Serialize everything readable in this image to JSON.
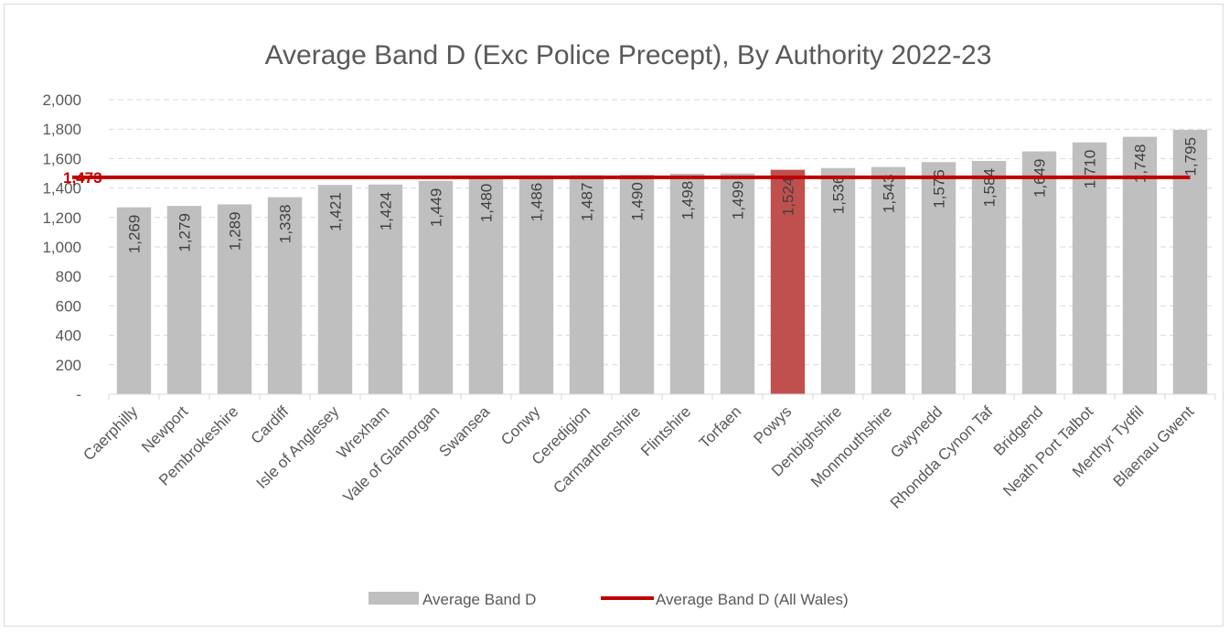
{
  "chart_data": {
    "type": "bar",
    "title": "Average Band D (Exc Police Precept), By Authority 2022-23",
    "xlabel": "",
    "ylabel": "",
    "ylim": [
      0,
      2000
    ],
    "y_ticks": [
      {
        "value": 0,
        "label": "-"
      },
      {
        "value": 200,
        "label": "200"
      },
      {
        "value": 400,
        "label": "400"
      },
      {
        "value": 600,
        "label": "600"
      },
      {
        "value": 800,
        "label": "800"
      },
      {
        "value": 1000,
        "label": "1,000"
      },
      {
        "value": 1200,
        "label": "1,200"
      },
      {
        "value": 1400,
        "label": "1,400"
      },
      {
        "value": 1600,
        "label": "1,600"
      },
      {
        "value": 1800,
        "label": "1,800"
      },
      {
        "value": 2000,
        "label": "2,000"
      }
    ],
    "grid": true,
    "categories": [
      "Caerphilly",
      "Newport",
      "Pembrokeshire",
      "Cardiff",
      "Isle of Anglesey",
      "Wrexham",
      "Vale of Glamorgan",
      "Swansea",
      "Conwy",
      "Ceredigion",
      "Carmarthenshire",
      "Flintshire",
      "Torfaen",
      "Powys",
      "Denbighshire",
      "Monmouthshire",
      "Gwynedd",
      "Rhondda Cynon Taf",
      "Bridgend",
      "Neath Port Talbot",
      "Merthyr Tydfil",
      "Blaenau Gwent"
    ],
    "series": [
      {
        "name": "Average Band D",
        "values": [
          1269,
          1279,
          1289,
          1338,
          1421,
          1424,
          1449,
          1480,
          1486,
          1487,
          1490,
          1498,
          1499,
          1524,
          1536,
          1543,
          1576,
          1584,
          1649,
          1710,
          1748,
          1795
        ],
        "labels": [
          "1,269",
          "1,279",
          "1,289",
          "1,338",
          "1,421",
          "1,424",
          "1,449",
          "1,480",
          "1,486",
          "1,487",
          "1,490",
          "1,498",
          "1,499",
          "1,524",
          "1,536",
          "1,543",
          "1,576",
          "1,584",
          "1,649",
          "1,710",
          "1,748",
          "1,795"
        ],
        "color": "#bfbfbf",
        "highlight_index": 13,
        "highlight_color": "#c0504d"
      }
    ],
    "reference_line": {
      "name": "Average Band D (All Wales)",
      "value": 1473,
      "label": "1,473",
      "color": "#c00000"
    },
    "legend_position": "bottom"
  }
}
